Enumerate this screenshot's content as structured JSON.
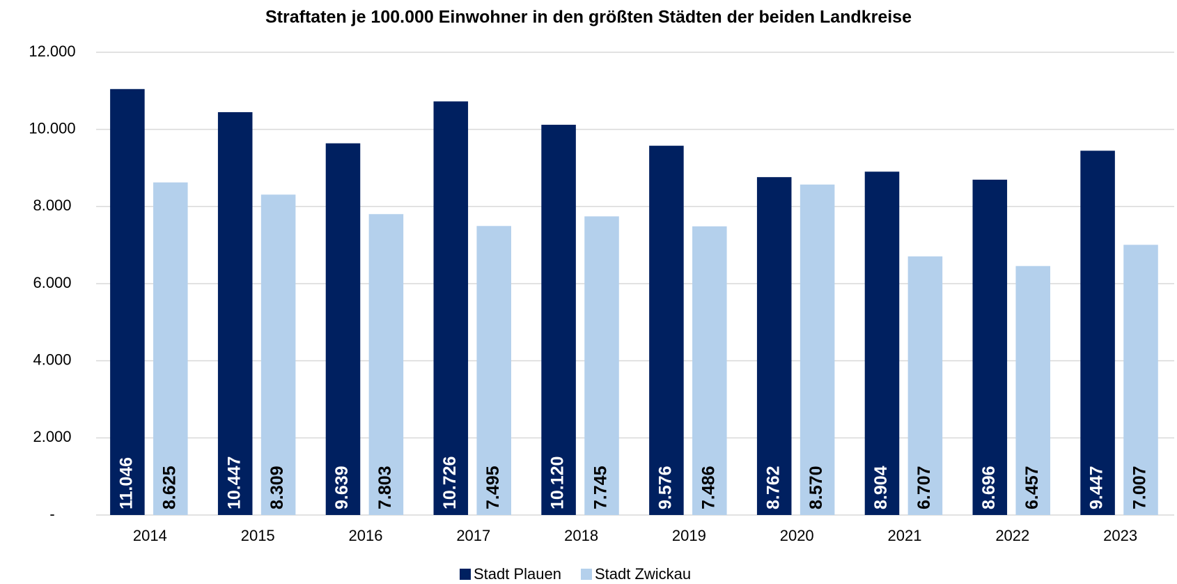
{
  "chart_data": {
    "type": "bar",
    "title": "Straftaten je 100.000 Einwohner in den größten Städten der beiden Landkreise",
    "categories": [
      "2014",
      "2015",
      "2016",
      "2017",
      "2018",
      "2019",
      "2020",
      "2021",
      "2022",
      "2023"
    ],
    "series": [
      {
        "name": "Stadt Plauen",
        "color": "#002060",
        "values": [
          11046,
          10447,
          9639,
          10726,
          10120,
          9576,
          8762,
          8904,
          8696,
          9447
        ],
        "value_labels": [
          "11.046",
          "10.447",
          "9.639",
          "10.726",
          "10.120",
          "9.576",
          "8.762",
          "8.904",
          "8.696",
          "9.447"
        ]
      },
      {
        "name": "Stadt Zwickau",
        "color": "#b4d0ec",
        "values": [
          8625,
          8309,
          7803,
          7495,
          7745,
          7486,
          8570,
          6707,
          6457,
          7007
        ],
        "value_labels": [
          "8.625",
          "8.309",
          "7.803",
          "7.495",
          "7.745",
          "7.486",
          "8.570",
          "6.707",
          "6.457",
          "7.007"
        ]
      }
    ],
    "ylim": [
      0,
      12000
    ],
    "yticks": [
      {
        "value": 0,
        "label": "-"
      },
      {
        "value": 2000,
        "label": "2.000"
      },
      {
        "value": 4000,
        "label": "4.000"
      },
      {
        "value": 6000,
        "label": "6.000"
      },
      {
        "value": 8000,
        "label": "8.000"
      },
      {
        "value": 10000,
        "label": "10.000"
      },
      {
        "value": 12000,
        "label": "12.000"
      }
    ],
    "grid": true,
    "legend": "bottom"
  }
}
